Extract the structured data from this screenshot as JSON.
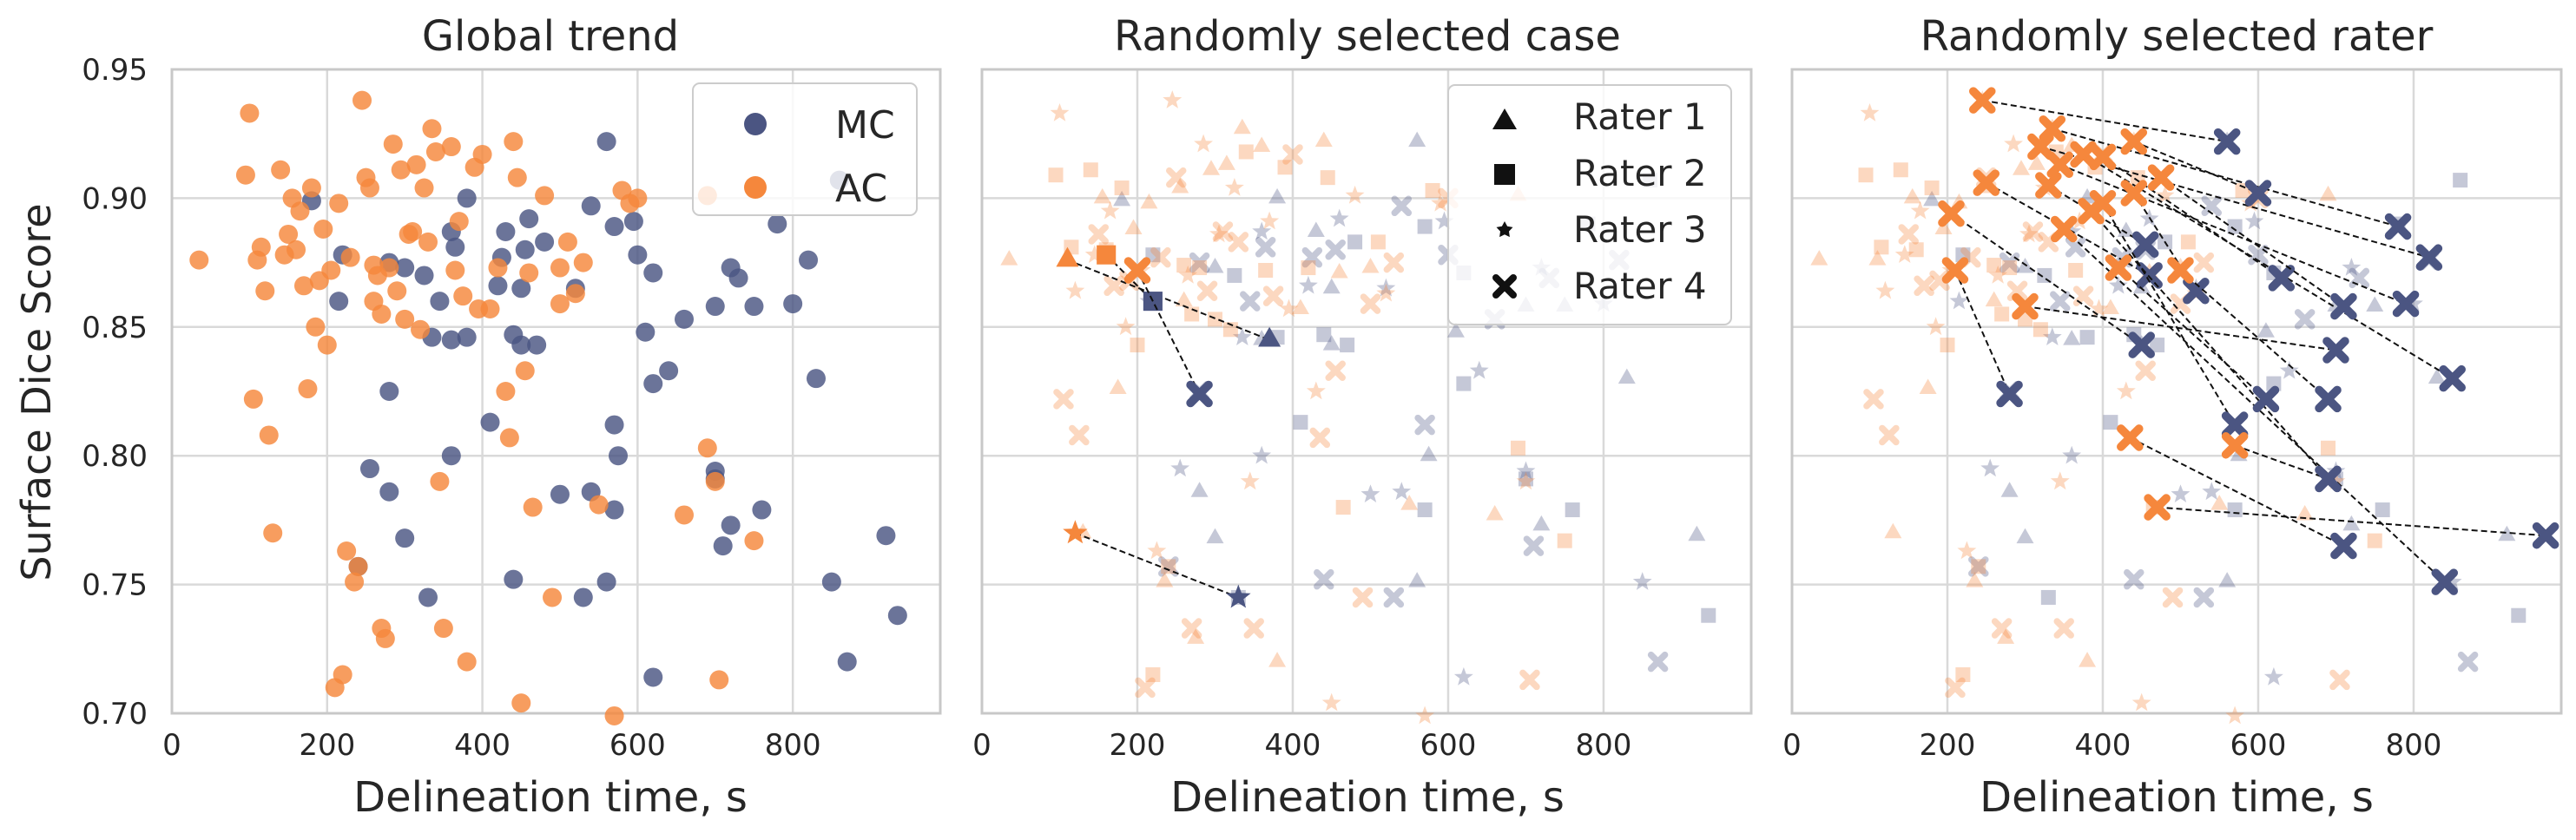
{
  "figure": {
    "ylabel": "Surface Dice Score"
  },
  "colors": {
    "MC": "#4b5582",
    "AC": "#f5873c",
    "grid": "#d9d9d9",
    "spine": "#c8c8c8",
    "text": "#262626",
    "link": "#111111"
  },
  "chart_data": [
    {
      "type": "scatter",
      "title": "Global trend",
      "xlabel": "Delineation time, s",
      "ylabel": "Surface Dice Score",
      "xlim": [
        0,
        990
      ],
      "ylim": [
        0.7,
        0.95
      ],
      "xticks": [
        "0",
        "200",
        "400",
        "600",
        "800"
      ],
      "yticks": [
        "0.70",
        "0.75",
        "0.80",
        "0.85",
        "0.90",
        "0.95"
      ],
      "legend": {
        "position": "top-right",
        "entries": [
          "MC",
          "AC"
        ]
      },
      "series": [
        {
          "name": "MC",
          "points": [
            [
              180,
              0.899
            ],
            [
              220,
              0.878
            ],
            [
              215,
              0.86
            ],
            [
              280,
              0.875
            ],
            [
              300,
              0.873
            ],
            [
              325,
              0.87
            ],
            [
              335,
              0.846
            ],
            [
              345,
              0.86
            ],
            [
              360,
              0.845
            ],
            [
              380,
              0.846
            ],
            [
              360,
              0.8
            ],
            [
              280,
              0.825
            ],
            [
              300,
              0.768
            ],
            [
              330,
              0.745
            ],
            [
              255,
              0.795
            ],
            [
              240,
              0.757
            ],
            [
              280,
              0.786
            ],
            [
              410,
              0.813
            ],
            [
              420,
              0.866
            ],
            [
              425,
              0.877
            ],
            [
              430,
              0.887
            ],
            [
              440,
              0.847
            ],
            [
              460,
              0.892
            ],
            [
              455,
              0.88
            ],
            [
              450,
              0.865
            ],
            [
              480,
              0.883
            ],
            [
              520,
              0.865
            ],
            [
              540,
              0.897
            ],
            [
              560,
              0.922
            ],
            [
              570,
              0.889
            ],
            [
              595,
              0.891
            ],
            [
              600,
              0.878
            ],
            [
              610,
              0.848
            ],
            [
              620,
              0.871
            ],
            [
              640,
              0.833
            ],
            [
              660,
              0.853
            ],
            [
              700,
              0.858
            ],
            [
              700,
              0.791
            ],
            [
              720,
              0.873
            ],
            [
              730,
              0.869
            ],
            [
              750,
              0.858
            ],
            [
              780,
              0.89
            ],
            [
              800,
              0.859
            ],
            [
              820,
              0.876
            ],
            [
              830,
              0.83
            ],
            [
              860,
              0.907
            ],
            [
              850,
              0.751
            ],
            [
              870,
              0.72
            ],
            [
              920,
              0.769
            ],
            [
              935,
              0.738
            ],
            [
              620,
              0.714
            ],
            [
              570,
              0.812
            ],
            [
              575,
              0.8
            ],
            [
              570,
              0.779
            ],
            [
              540,
              0.786
            ],
            [
              530,
              0.745
            ],
            [
              450,
              0.843
            ],
            [
              470,
              0.843
            ],
            [
              500,
              0.785
            ],
            [
              440,
              0.752
            ],
            [
              560,
              0.751
            ],
            [
              620,
              0.828
            ],
            [
              700,
              0.794
            ],
            [
              710,
              0.765
            ],
            [
              720,
              0.773
            ],
            [
              760,
              0.779
            ],
            [
              360,
              0.887
            ],
            [
              365,
              0.881
            ],
            [
              380,
              0.9
            ]
          ]
        },
        {
          "name": "AC",
          "points": [
            [
              35,
              0.876
            ],
            [
              95,
              0.909
            ],
            [
              100,
              0.933
            ],
            [
              105,
              0.822
            ],
            [
              110,
              0.876
            ],
            [
              115,
              0.881
            ],
            [
              120,
              0.864
            ],
            [
              125,
              0.808
            ],
            [
              130,
              0.77
            ],
            [
              140,
              0.911
            ],
            [
              145,
              0.878
            ],
            [
              150,
              0.886
            ],
            [
              155,
              0.9
            ],
            [
              160,
              0.88
            ],
            [
              165,
              0.895
            ],
            [
              170,
              0.866
            ],
            [
              175,
              0.826
            ],
            [
              180,
              0.904
            ],
            [
              185,
              0.85
            ],
            [
              190,
              0.868
            ],
            [
              195,
              0.888
            ],
            [
              200,
              0.843
            ],
            [
              205,
              0.872
            ],
            [
              210,
              0.71
            ],
            [
              215,
              0.898
            ],
            [
              220,
              0.715
            ],
            [
              225,
              0.763
            ],
            [
              230,
              0.877
            ],
            [
              235,
              0.751
            ],
            [
              240,
              0.757
            ],
            [
              245,
              0.938
            ],
            [
              250,
              0.908
            ],
            [
              255,
              0.904
            ],
            [
              260,
              0.874
            ],
            [
              265,
              0.87
            ],
            [
              270,
              0.733
            ],
            [
              275,
              0.729
            ],
            [
              280,
              0.873
            ],
            [
              285,
              0.921
            ],
            [
              290,
              0.864
            ],
            [
              295,
              0.911
            ],
            [
              300,
              0.853
            ],
            [
              305,
              0.886
            ],
            [
              310,
              0.887
            ],
            [
              315,
              0.913
            ],
            [
              320,
              0.849
            ],
            [
              325,
              0.904
            ],
            [
              330,
              0.883
            ],
            [
              335,
              0.927
            ],
            [
              340,
              0.918
            ],
            [
              345,
              0.79
            ],
            [
              350,
              0.733
            ],
            [
              360,
              0.92
            ],
            [
              365,
              0.872
            ],
            [
              370,
              0.891
            ],
            [
              375,
              0.862
            ],
            [
              380,
              0.72
            ],
            [
              390,
              0.912
            ],
            [
              395,
              0.857
            ],
            [
              400,
              0.917
            ],
            [
              410,
              0.857
            ],
            [
              420,
              0.873
            ],
            [
              430,
              0.825
            ],
            [
              435,
              0.807
            ],
            [
              440,
              0.922
            ],
            [
              445,
              0.908
            ],
            [
              450,
              0.704
            ],
            [
              455,
              0.833
            ],
            [
              460,
              0.871
            ],
            [
              465,
              0.78
            ],
            [
              480,
              0.901
            ],
            [
              490,
              0.745
            ],
            [
              500,
              0.873
            ],
            [
              510,
              0.883
            ],
            [
              520,
              0.863
            ],
            [
              530,
              0.875
            ],
            [
              550,
              0.781
            ],
            [
              580,
              0.903
            ],
            [
              590,
              0.898
            ],
            [
              600,
              0.9
            ],
            [
              660,
              0.777
            ],
            [
              690,
              0.803
            ],
            [
              700,
              0.79
            ],
            [
              705,
              0.713
            ],
            [
              690,
              0.901
            ],
            [
              750,
              0.767
            ],
            [
              570,
              0.699
            ],
            [
              500,
              0.859
            ],
            [
              260,
              0.86
            ],
            [
              270,
              0.855
            ]
          ]
        }
      ]
    },
    {
      "type": "scatter",
      "title": "Randomly selected case",
      "xlabel": "Delineation time, s",
      "xlim": [
        0,
        990
      ],
      "ylim": [
        0.7,
        0.95
      ],
      "xticks": [
        "0",
        "200",
        "400",
        "600",
        "800"
      ],
      "legend": {
        "position": "top-right",
        "entries": [
          {
            "label": "Rater 1",
            "marker": "triangle"
          },
          {
            "label": "Rater 2",
            "marker": "square"
          },
          {
            "label": "Rater 3",
            "marker": "star"
          },
          {
            "label": "Rater 4",
            "marker": "x"
          }
        ]
      },
      "highlighted": [
        {
          "AC": [
            110,
            0.876
          ],
          "MC": [
            370,
            0.845
          ],
          "marker": "triangle"
        },
        {
          "AC": [
            160,
            0.878
          ],
          "MC": [
            220,
            0.86
          ],
          "marker": "square"
        },
        {
          "AC": [
            120,
            0.77
          ],
          "MC": [
            330,
            0.745
          ],
          "marker": "star"
        },
        {
          "AC": [
            200,
            0.872
          ],
          "MC": [
            280,
            0.824
          ],
          "marker": "x"
        }
      ]
    },
    {
      "type": "scatter",
      "title": "Randomly selected rater",
      "xlabel": "Delineation time, s",
      "xlim": [
        0,
        990
      ],
      "ylim": [
        0.7,
        0.95
      ],
      "xticks": [
        "0",
        "200",
        "400",
        "600",
        "800"
      ],
      "highlighted_marker": "x",
      "highlighted": [
        {
          "AC": [
            245,
            0.938
          ],
          "MC": [
            560,
            0.922
          ]
        },
        {
          "AC": [
            335,
            0.927
          ],
          "MC": [
            780,
            0.889
          ]
        },
        {
          "AC": [
            320,
            0.92
          ],
          "MC": [
            820,
            0.877
          ]
        },
        {
          "AC": [
            345,
            0.913
          ],
          "MC": [
            790,
            0.859
          ]
        },
        {
          "AC": [
            375,
            0.917
          ],
          "MC": [
            850,
            0.83
          ]
        },
        {
          "AC": [
            400,
            0.916
          ],
          "MC": [
            630,
            0.869
          ]
        },
        {
          "AC": [
            440,
            0.922
          ],
          "MC": [
            600,
            0.902
          ]
        },
        {
          "AC": [
            475,
            0.908
          ],
          "MC": [
            710,
            0.858
          ]
        },
        {
          "AC": [
            440,
            0.902
          ],
          "MC": [
            520,
            0.864
          ]
        },
        {
          "AC": [
            330,
            0.905
          ],
          "MC": [
            455,
            0.882
          ]
        },
        {
          "AC": [
            250,
            0.906
          ],
          "MC": [
            460,
            0.87
          ]
        },
        {
          "AC": [
            400,
            0.898
          ],
          "MC": [
            570,
            0.812
          ]
        },
        {
          "AC": [
            385,
            0.895
          ],
          "MC": [
            690,
            0.791
          ]
        },
        {
          "AC": [
            350,
            0.888
          ],
          "MC": [
            840,
            0.751
          ]
        },
        {
          "AC": [
            205,
            0.894
          ],
          "MC": [
            450,
            0.843
          ]
        },
        {
          "AC": [
            420,
            0.873
          ],
          "MC": [
            610,
            0.822
          ]
        },
        {
          "AC": [
            210,
            0.872
          ],
          "MC": [
            280,
            0.824
          ]
        },
        {
          "AC": [
            300,
            0.858
          ],
          "MC": [
            700,
            0.841
          ]
        },
        {
          "AC": [
            500,
            0.872
          ],
          "MC": [
            690,
            0.822
          ]
        },
        {
          "AC": [
            435,
            0.807
          ],
          "MC": [
            710,
            0.765
          ]
        },
        {
          "AC": [
            570,
            0.804
          ],
          "MC": [
            690,
            0.791
          ]
        },
        {
          "AC": [
            470,
            0.78
          ],
          "MC": [
            970,
            0.769
          ]
        }
      ]
    }
  ]
}
